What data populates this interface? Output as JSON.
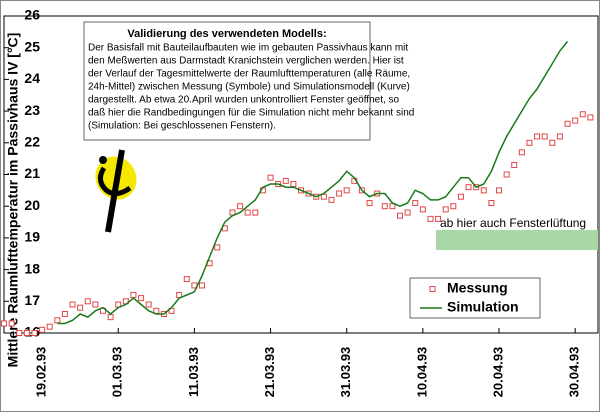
{
  "chart_data": {
    "type": "line",
    "y_label": "Mittlere Raumlufttemperatur im Passivhaus IV [°C]",
    "annotations": {
      "title": "Validierung des verwendeten Modells:",
      "lines": [
        "Der Basisfall mit Bauteilaufbauten wie im gebauten Passivhaus kann mit",
        "den Meßwerten aus Darmstadt Kranichstein verglichen werden. Hier ist",
        "der Verlauf der Tagesmittelwerte der Raumlufttemperaturen (alle Räume,",
        "24h-Mittel) zwischen Messung (Symbole) und Simulationsmodell (Kurve)",
        "dargestellt. Ab etwa 20.April wurden unkontrolliert Fenster geöffnet, so",
        "daß hier die Randbedingungen für die Simulation nicht mehr bekannt sind",
        "(Simulation: Bei geschlossenen Fenstern)."
      ],
      "note": "ab hier auch Fensterlüftung"
    },
    "x": [
      -5,
      -4,
      -3,
      -2,
      -1,
      0,
      1,
      2,
      3,
      4,
      5,
      6,
      7,
      8,
      9,
      10,
      11,
      12,
      13,
      14,
      15,
      16,
      17,
      18,
      19,
      20,
      21,
      22,
      23,
      24,
      25,
      26,
      27,
      28,
      29,
      30,
      31,
      32,
      33,
      34,
      35,
      36,
      37,
      38,
      39,
      40,
      41,
      42,
      43,
      44,
      45,
      46,
      47,
      48,
      49,
      50,
      51,
      52,
      53,
      54,
      55,
      56,
      57,
      58,
      59,
      60,
      61,
      62,
      63,
      64,
      65,
      66,
      67,
      68,
      69,
      70,
      71,
      72
    ],
    "series": [
      {
        "name": "Messung",
        "color": "#e04848",
        "marker": "square",
        "values": [
          16.3,
          16.3,
          16.0,
          16.0,
          16.0,
          16.1,
          16.2,
          16.4,
          16.6,
          16.9,
          16.8,
          17.0,
          16.9,
          16.7,
          16.5,
          16.9,
          17.0,
          17.2,
          17.1,
          16.9,
          16.7,
          16.6,
          16.7,
          17.2,
          17.7,
          17.5,
          17.5,
          18.2,
          18.7,
          19.3,
          19.8,
          20.0,
          19.8,
          19.8,
          20.5,
          20.9,
          20.7,
          20.8,
          20.7,
          20.5,
          20.4,
          20.3,
          20.3,
          20.2,
          20.4,
          20.5,
          20.8,
          20.5,
          20.1,
          20.4,
          20.0,
          20.0,
          19.7,
          19.8,
          20.1,
          19.9,
          19.6,
          19.6,
          19.9,
          20.0,
          20.3,
          20.6,
          20.6,
          20.5,
          20.1,
          20.5,
          21.0,
          21.3,
          21.7,
          22.0,
          22.2,
          22.2,
          22.0,
          22.2,
          22.6,
          22.7,
          22.9,
          22.8
        ]
      },
      {
        "name": "Simulation",
        "color": "#1a7a1a",
        "marker": "none",
        "values": [
          null,
          null,
          null,
          null,
          null,
          null,
          null,
          16.3,
          16.3,
          16.4,
          16.6,
          16.5,
          16.7,
          16.8,
          16.6,
          16.8,
          16.9,
          17.1,
          16.9,
          16.7,
          16.6,
          16.6,
          16.8,
          17.1,
          17.2,
          17.3,
          17.8,
          18.4,
          19.0,
          19.5,
          19.7,
          19.8,
          20.0,
          20.2,
          20.6,
          20.7,
          20.7,
          20.6,
          20.6,
          20.5,
          20.4,
          20.3,
          20.4,
          20.6,
          20.8,
          21.1,
          20.9,
          20.5,
          20.3,
          20.4,
          20.4,
          20.1,
          20.0,
          20.1,
          20.5,
          20.4,
          20.2,
          20.2,
          20.3,
          20.6,
          20.9,
          20.9,
          20.6,
          20.7,
          21.1,
          21.7,
          22.2,
          22.6,
          23.0,
          23.4,
          23.7,
          24.1,
          24.5,
          24.9,
          25.2,
          null,
          null,
          null
        ]
      }
    ],
    "xlim": [
      -5,
      73
    ],
    "xticks": [
      {
        "value": 0,
        "label": "19.02.93"
      },
      {
        "value": 10,
        "label": "01.03.93"
      },
      {
        "value": 20,
        "label": "11.03.93"
      },
      {
        "value": 30,
        "label": "21.03.93"
      },
      {
        "value": 40,
        "label": "31.03.93"
      },
      {
        "value": 50,
        "label": "10.04.93"
      },
      {
        "value": 60,
        "label": "20.04.93"
      },
      {
        "value": 70,
        "label": "30.04.93"
      }
    ],
    "ylim": [
      16,
      26
    ],
    "yticks": [
      16,
      17,
      18,
      19,
      20,
      21,
      22,
      23,
      24,
      25,
      26
    ],
    "legend": "lower right"
  }
}
